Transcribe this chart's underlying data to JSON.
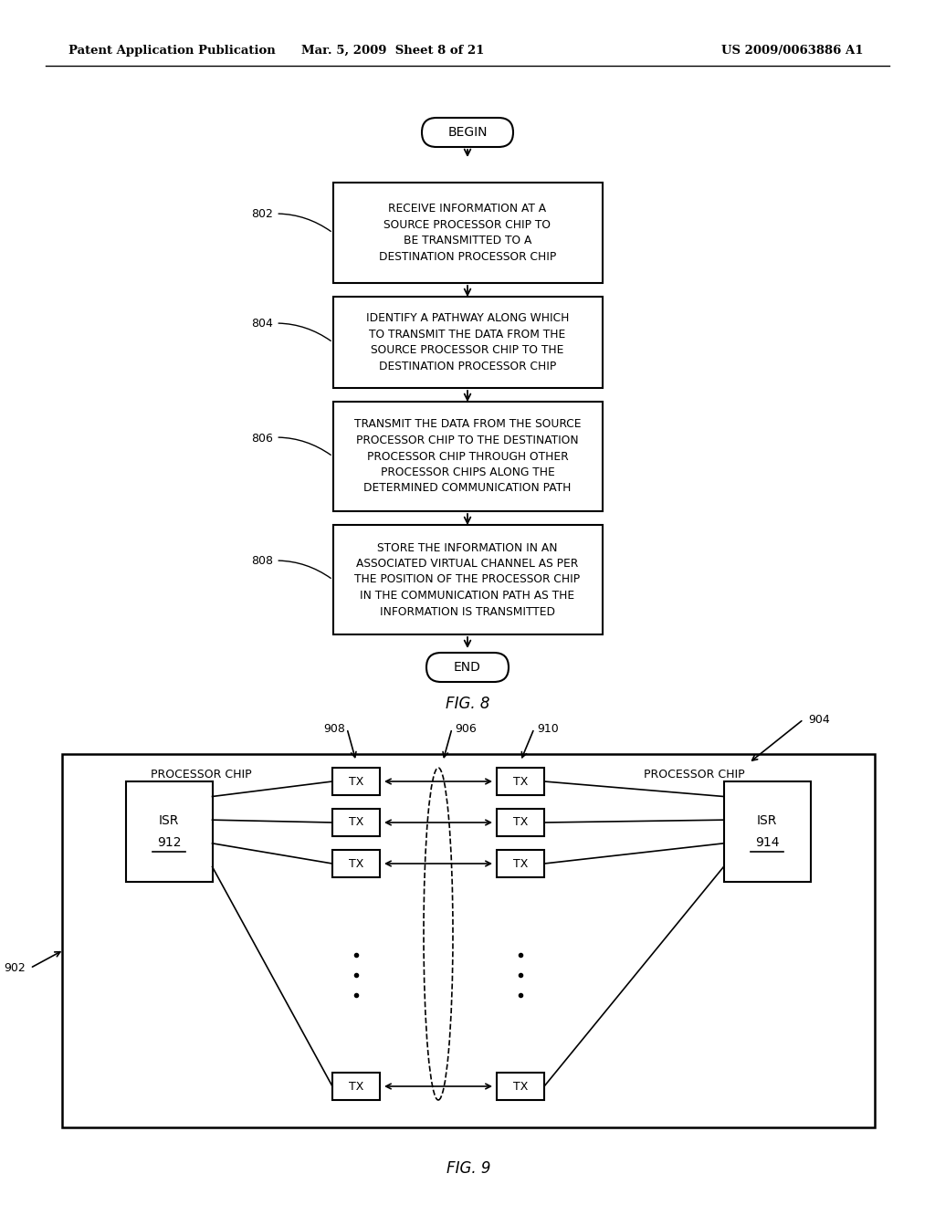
{
  "header_left": "Patent Application Publication",
  "header_mid": "Mar. 5, 2009  Sheet 8 of 21",
  "header_right": "US 2009/0063886 A1",
  "bg_color": "#ffffff",
  "flowchart": {
    "begin_label": "BEGIN",
    "end_label": "END",
    "box802_text": "RECEIVE INFORMATION AT A\nSOURCE PROCESSOR CHIP TO\nBE TRANSMITTED TO A\nDESTINATION PROCESSOR CHIP",
    "box804_text": "IDENTIFY A PATHWAY ALONG WHICH\nTO TRANSMIT THE DATA FROM THE\nSOURCE PROCESSOR CHIP TO THE\nDESTINATION PROCESSOR CHIP",
    "box806_text": "TRANSMIT THE DATA FROM THE SOURCE\nPROCESSOR CHIP TO THE DESTINATION\nPROCESSOR CHIP THROUGH OTHER\nPROCESSOR CHIPS ALONG THE\nDETERMINED COMMUNICATION PATH",
    "box808_text": "STORE THE INFORMATION IN AN\nASSOCIATED VIRTUAL CHANNEL AS PER\nTHE POSITION OF THE PROCESSOR CHIP\nIN THE COMMUNICATION PATH AS THE\nINFORMATION IS TRANSMITTED",
    "label802": "802",
    "label804": "804",
    "label806": "806",
    "label808": "808",
    "fig8_caption": "FIG. 8"
  },
  "fig9": {
    "label902": "902",
    "label904": "904",
    "label906": "906",
    "label908": "908",
    "label910": "910",
    "proc_chip_left": "PROCESSOR CHIP",
    "proc_chip_right": "PROCESSOR CHIP",
    "isr_left_line1": "ISR",
    "isr_left_line2": "912",
    "isr_right_line1": "ISR",
    "isr_right_line2": "914",
    "tx_label": "TX",
    "fig9_caption": "FIG. 9"
  }
}
